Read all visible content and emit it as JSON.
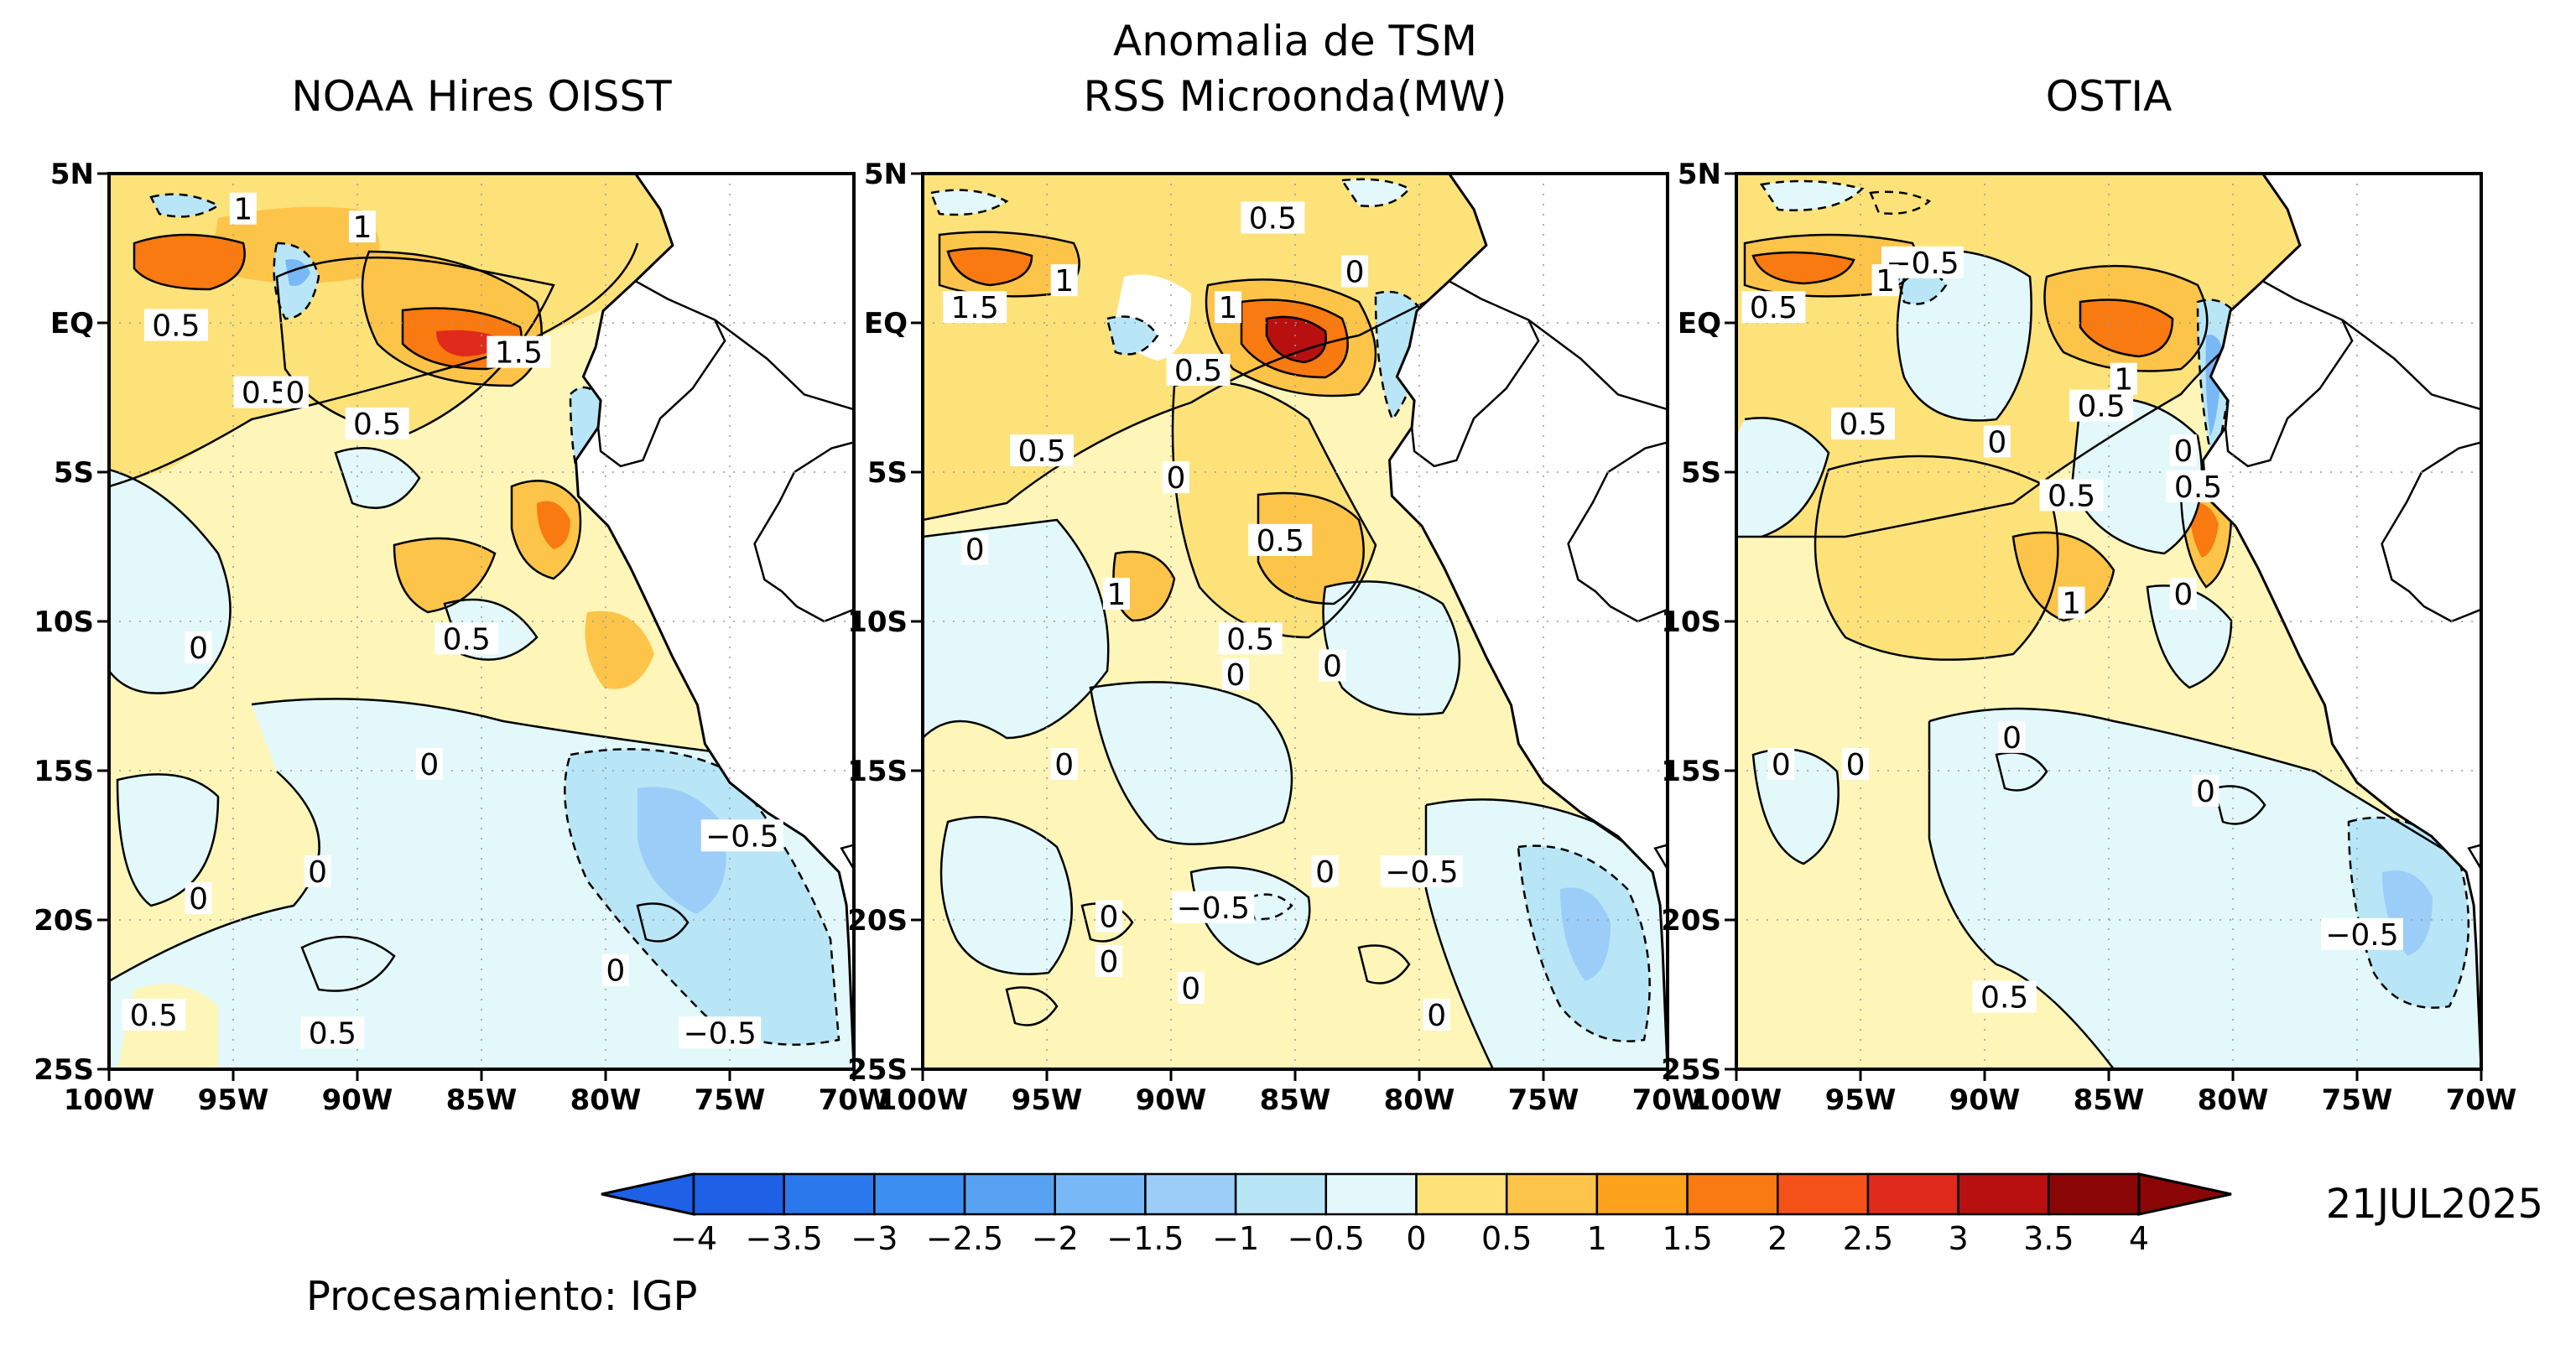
{
  "figure": {
    "main_title": "Anomalia de TSM",
    "date": "21JUL2025",
    "footer": "Procesamiento: IGP"
  },
  "panels": [
    {
      "id": "noaa",
      "title": "NOAA Hires OISST",
      "contour_labels": [
        "1",
        "1",
        "0.5",
        "0.5",
        "0",
        "1.5",
        "0.5",
        "0.5",
        "0",
        "0",
        "0",
        "−0.5",
        "0.5",
        "0",
        "0",
        "−0.5",
        "0.5"
      ]
    },
    {
      "id": "rss",
      "title": "RSS Microonda(MW)",
      "contour_labels": [
        "0.5",
        "1.5",
        "1",
        "1",
        "0",
        "0.5",
        "0.5",
        "0",
        "0",
        "1",
        "0.5",
        "0.5",
        "0",
        "0",
        "0",
        "0",
        "−0.5",
        "−0.5",
        "0",
        "0",
        "0",
        "0"
      ]
    },
    {
      "id": "ostia",
      "title": "OSTIA",
      "contour_labels": [
        "−0.5",
        "1",
        "0.5",
        "1",
        "0.5",
        "0.5",
        "0",
        "0",
        "0.5",
        "0.5",
        "0",
        "1",
        "0",
        "0",
        "0",
        "0",
        "−0.5",
        "0.5"
      ]
    }
  ],
  "axes": {
    "lon_ticks": [
      "100W",
      "95W",
      "90W",
      "85W",
      "80W",
      "75W",
      "70W"
    ],
    "lat_ticks": [
      "5N",
      "EQ",
      "5S",
      "10S",
      "15S",
      "20S",
      "25S"
    ],
    "lon_range": [
      -100,
      -70
    ],
    "lat_range": [
      -25,
      5
    ]
  },
  "colorbar": {
    "labels": [
      "−4",
      "−3.5",
      "−3",
      "−2.5",
      "−2",
      "−1.5",
      "−1",
      "−0.5",
      "0",
      "0.5",
      "1",
      "1.5",
      "2",
      "2.5",
      "3",
      "3.5",
      "4"
    ],
    "colors": [
      "#1e60e6",
      "#2a78ec",
      "#3c8ef0",
      "#58a2f2",
      "#79b8f6",
      "#9bcdf8",
      "#b8e6f6",
      "#e2f8fb",
      "#fef6b8",
      "#fde27a",
      "#fdc44a",
      "#fda21c",
      "#f97a10",
      "#f5521a",
      "#e02a1c",
      "#b81010",
      "#8a0606"
    ],
    "range": [
      -4,
      4
    ],
    "step": 0.5
  }
}
